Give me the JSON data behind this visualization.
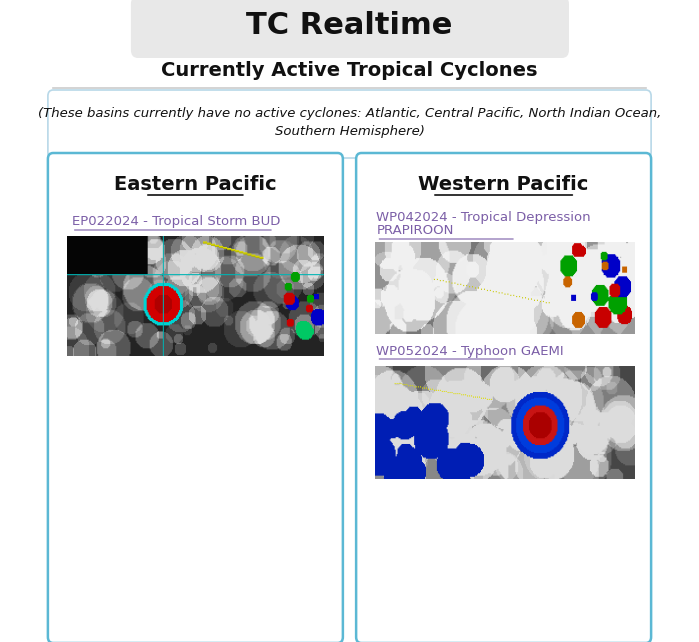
{
  "title": "TC Realtime",
  "subtitle": "Currently Active Tropical Cyclones",
  "inactive_line1": "(These basins currently have no active cyclones: Atlantic, Central Pacific, North Indian Ocean,",
  "inactive_line2": "Southern Hemisphere)",
  "bg_color": "#ffffff",
  "title_bg_color": "#e8e8e8",
  "panel_border_color": "#5bb8d4",
  "inactive_border_color": "#b8d8e8",
  "left_panel_title": "Eastern Pacific",
  "right_panel_title": "Western Pacific",
  "left_link1": "EP022024 - Tropical Storm BUD",
  "right_link1a": "WP042024 - Tropical Depression",
  "right_link1b": "PRAPIROON",
  "right_link2": "WP052024 - Typhoon GAEMI",
  "link_color": "#7b5ea7",
  "separator_color": "#cccccc"
}
